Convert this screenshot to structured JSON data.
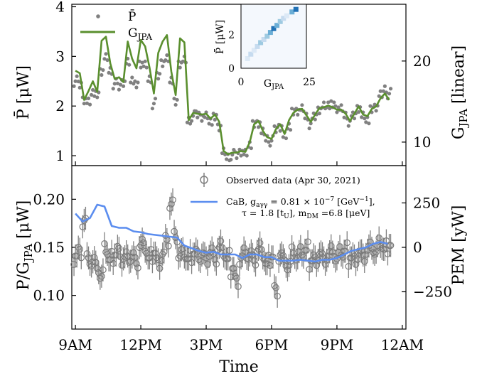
{
  "chart_data": [
    {
      "type": "line+scatter",
      "panel": "top",
      "ylabel_left": "P̄ [μW]",
      "ylabel_right": "GJPA [linear]",
      "ylim": [
        0.8,
        4.05
      ],
      "y2lim": [
        7.1,
        27.0
      ],
      "xlim": [
        "08:50",
        "00:10"
      ],
      "left_ticks": [
        "1",
        "2",
        "3",
        "4"
      ],
      "left_tick_values": [
        1,
        2,
        3,
        4
      ],
      "right_ticks": [
        "10",
        "20"
      ],
      "right_tick_values": [
        10,
        20
      ],
      "legend": [
        {
          "label": "P̄",
          "marker": "dot",
          "color": "#808080"
        },
        {
          "label": "GJPA",
          "marker": "line",
          "color": "#5a8f2e"
        }
      ],
      "series": [
        {
          "name": "GJPA",
          "color": "#5a8f2e",
          "axis": "right",
          "x": [
            "09:00",
            "09:12",
            "09:24",
            "09:36",
            "09:48",
            "10:00",
            "10:12",
            "10:24",
            "10:36",
            "10:48",
            "11:00",
            "11:12",
            "11:24",
            "11:36",
            "11:48",
            "12:00",
            "12:12",
            "12:24",
            "12:36",
            "12:48",
            "13:00",
            "13:12",
            "13:24",
            "13:36",
            "13:48",
            "14:00",
            "14:12",
            "14:24",
            "14:36",
            "14:48",
            "15:00",
            "15:12",
            "15:24",
            "15:36",
            "15:48",
            "16:00",
            "16:12",
            "16:24",
            "16:36",
            "16:48",
            "17:00",
            "17:12",
            "17:24",
            "17:36",
            "17:48",
            "18:00",
            "18:12",
            "18:24",
            "18:36",
            "18:48",
            "19:00",
            "19:12",
            "19:24",
            "19:36",
            "19:48",
            "20:00",
            "20:12",
            "20:24",
            "20:36",
            "20:48",
            "21:00",
            "21:12",
            "21:24",
            "21:36",
            "21:48",
            "22:00",
            "22:12",
            "22:24",
            "22:36",
            "22:48",
            "23:00",
            "23:12",
            "23:24"
          ],
          "values": [
            18.8,
            18.5,
            15.2,
            16.3,
            17.5,
            16.2,
            22.5,
            23.0,
            19.7,
            17.8,
            18.0,
            17.4,
            22.4,
            20.3,
            19.1,
            22.6,
            21.8,
            19.2,
            16.0,
            21.0,
            22.4,
            23.2,
            18.7,
            15.8,
            22.8,
            22.3,
            12.7,
            13.6,
            13.5,
            13.4,
            13.5,
            12.9,
            13.4,
            12.5,
            8.9,
            8.5,
            8.7,
            8.7,
            8.9,
            8.8,
            10.0,
            12.2,
            12.6,
            11.4,
            10.6,
            10.4,
            11.6,
            12.2,
            11.0,
            12.7,
            13.6,
            14.0,
            14.1,
            13.3,
            12.5,
            13.4,
            14.2,
            14.3,
            14.5,
            14.3,
            14.0,
            14.0,
            13.5,
            12.6,
            13.5,
            14.4,
            13.4,
            13.2,
            14.1,
            14.4,
            15.4,
            16.0,
            15.2
          ]
        },
        {
          "name": "P̄",
          "color": "#808080",
          "axis": "left",
          "x": [
            "09:00",
            "09:12",
            "09:24",
            "09:36",
            "09:48",
            "10:00",
            "10:12",
            "10:24",
            "10:36",
            "10:48",
            "11:00",
            "11:12",
            "11:24",
            "11:36",
            "11:48",
            "12:00",
            "12:12",
            "12:24",
            "12:36",
            "12:48",
            "13:00",
            "13:12",
            "13:24",
            "13:36",
            "13:48",
            "14:00",
            "14:12",
            "14:24",
            "14:36",
            "14:48",
            "15:00",
            "15:12",
            "15:24",
            "15:36",
            "15:48",
            "16:00",
            "16:12",
            "16:24",
            "16:36",
            "16:48",
            "17:00",
            "17:12",
            "17:24",
            "17:36",
            "17:48",
            "18:00",
            "18:12",
            "18:24",
            "18:36",
            "18:48",
            "19:00",
            "19:12",
            "19:24",
            "19:36",
            "19:48",
            "20:00",
            "20:12",
            "20:24",
            "20:36",
            "20:48",
            "21:00",
            "21:12",
            "21:24",
            "21:36",
            "21:48",
            "22:00",
            "22:12",
            "22:24",
            "22:36",
            "22:48",
            "23:00",
            "23:12",
            "23:24"
          ],
          "values": [
            2.5,
            2.42,
            2.15,
            2.08,
            2.3,
            2.2,
            2.7,
            2.95,
            2.72,
            2.45,
            2.38,
            2.5,
            2.88,
            2.55,
            2.4,
            2.85,
            2.8,
            2.55,
            2.05,
            2.6,
            2.9,
            2.95,
            2.55,
            2.05,
            2.85,
            2.9,
            1.72,
            1.8,
            1.82,
            1.8,
            1.8,
            1.72,
            1.75,
            1.58,
            1.05,
            0.98,
            1.02,
            1.0,
            1.1,
            1.05,
            1.25,
            1.6,
            1.65,
            1.45,
            1.35,
            1.3,
            1.52,
            1.6,
            1.4,
            1.62,
            1.85,
            1.9,
            1.92,
            1.8,
            1.65,
            1.78,
            1.95,
            2.0,
            2.05,
            2.0,
            1.95,
            1.92,
            1.82,
            1.7,
            1.8,
            1.98,
            1.8,
            1.75,
            1.9,
            1.98,
            2.2,
            2.35,
            2.25
          ]
        }
      ],
      "inset": {
        "type": "heatmap",
        "xlabel": "GJPA",
        "ylabel": "P̄ [μW]",
        "x_ticks": [
          "0",
          "25"
        ],
        "y_ticks": [
          "0",
          "2"
        ],
        "cmap": "Blues"
      }
    },
    {
      "type": "scatter+line",
      "panel": "bottom",
      "xlabel": "Time",
      "ylabel_left": "P/GJPA [μW]",
      "ylabel_right": "PEM [yW]",
      "ylim": [
        0.065,
        0.235
      ],
      "y2lim": [
        -460,
        460
      ],
      "xlim": [
        "08:50",
        "00:10"
      ],
      "x_ticks": [
        "9AM",
        "12PM",
        "3PM",
        "6PM",
        "9PM",
        "12AM"
      ],
      "left_ticks": [
        "0.10",
        "0.15",
        "0.20"
      ],
      "left_tick_values": [
        0.1,
        0.15,
        0.2
      ],
      "right_ticks": [
        "−250",
        "0",
        "250"
      ],
      "right_tick_values": [
        -250,
        0,
        250
      ],
      "legend": [
        {
          "label": "Observed data (Apr 30, 2021)",
          "marker": "open-circle-errorbar",
          "color": "#808080"
        },
        {
          "label": "CaB, gaγγ = 0.81 × 10−7 [GeV−1],",
          "label_line2": "τ = 1.8 [tU], mDM =6.8 [μeV]",
          "marker": "line",
          "color": "#5b8def"
        }
      ],
      "series": [
        {
          "name": "CaB, gaγγ = 0.81 × 10−7 [GeV−1], τ = 1.8 [tU], mDM =6.8 [μeV]",
          "color": "#5b8def",
          "axis": "right",
          "x": [
            "09:00",
            "09:20",
            "09:40",
            "10:00",
            "10:20",
            "10:40",
            "11:00",
            "11:20",
            "11:40",
            "12:00",
            "12:20",
            "12:40",
            "13:00",
            "13:20",
            "13:40",
            "14:00",
            "14:20",
            "14:40",
            "15:00",
            "15:20",
            "15:40",
            "16:00",
            "16:20",
            "16:40",
            "17:00",
            "17:20",
            "17:40",
            "18:00",
            "18:20",
            "18:40",
            "19:00",
            "19:20",
            "19:40",
            "20:00",
            "20:20",
            "20:40",
            "21:00",
            "21:20",
            "21:40",
            "22:00",
            "22:20",
            "22:40",
            "23:00",
            "23:20"
          ],
          "values": [
            190,
            145,
            165,
            240,
            230,
            120,
            110,
            110,
            90,
            85,
            75,
            70,
            65,
            60,
            55,
            10,
            -5,
            -20,
            -30,
            -25,
            -40,
            -40,
            -40,
            -60,
            -40,
            -40,
            -55,
            -55,
            -75,
            -75,
            -75,
            -70,
            -75,
            -80,
            -70,
            -70,
            -60,
            -40,
            -20,
            -10,
            0,
            20,
            30,
            20
          ]
        },
        {
          "name": "Observed data (Apr 30, 2021)",
          "color": "#808080",
          "axis": "left",
          "x": [
            "09:00",
            "09:12",
            "09:24",
            "09:36",
            "09:48",
            "10:00",
            "10:12",
            "10:24",
            "10:36",
            "10:48",
            "11:00",
            "11:12",
            "11:24",
            "11:36",
            "11:48",
            "12:00",
            "12:12",
            "12:24",
            "12:36",
            "12:48",
            "13:00",
            "13:12",
            "13:24",
            "13:36",
            "13:48",
            "14:00",
            "14:12",
            "14:24",
            "14:36",
            "14:48",
            "15:00",
            "15:12",
            "15:24",
            "15:36",
            "15:48",
            "16:00",
            "16:12",
            "16:24",
            "16:36",
            "16:48",
            "17:00",
            "17:12",
            "17:24",
            "17:36",
            "17:48",
            "18:00",
            "18:12",
            "18:24",
            "18:36",
            "18:48",
            "19:00",
            "19:12",
            "19:24",
            "19:36",
            "19:48",
            "20:00",
            "20:12",
            "20:24",
            "20:36",
            "20:48",
            "21:00",
            "21:12",
            "21:24",
            "21:36",
            "21:48",
            "22:00",
            "22:12",
            "22:24",
            "22:36",
            "22:48",
            "23:00",
            "23:12",
            "23:24"
          ],
          "values": [
            0.141,
            0.148,
            0.178,
            0.139,
            0.135,
            0.128,
            0.12,
            0.145,
            0.137,
            0.142,
            0.149,
            0.138,
            0.141,
            0.14,
            0.133,
            0.152,
            0.146,
            0.139,
            0.144,
            0.137,
            0.143,
            0.158,
            0.195,
            0.16,
            0.141,
            0.14,
            0.138,
            0.143,
            0.146,
            0.142,
            0.139,
            0.145,
            0.137,
            0.15,
            0.141,
            0.138,
            0.128,
            0.118,
            0.139,
            0.145,
            0.142,
            0.136,
            0.148,
            0.139,
            0.133,
            0.14,
            0.108,
            0.142,
            0.137,
            0.131,
            0.144,
            0.139,
            0.142,
            0.147,
            0.136,
            0.14,
            0.143,
            0.139,
            0.141,
            0.145,
            0.138,
            0.142,
            0.146,
            0.139,
            0.141,
            0.144,
            0.142,
            0.147,
            0.149,
            0.145,
            0.151,
            0.148,
            0.152
          ],
          "error": 0.012
        }
      ]
    }
  ]
}
